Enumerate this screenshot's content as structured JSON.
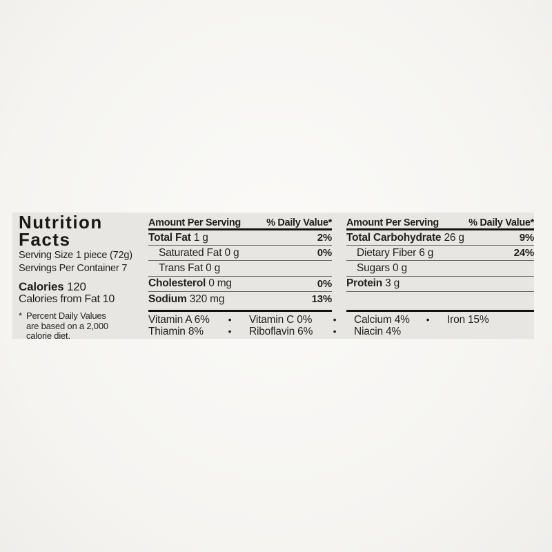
{
  "colors": {
    "photo_background": "#f7f6f3",
    "label_background": "#e8e6e2",
    "text": "#211f1c",
    "thin_rule": "#6e6b64",
    "thick_rule": "#14120f"
  },
  "title": {
    "line1": "Nutrition",
    "line2": "Facts"
  },
  "serving": {
    "size": "Serving Size 1 piece (72g)",
    "per_container": "Servings Per Container 7"
  },
  "calories": {
    "label": "Calories",
    "value": "120",
    "from_fat": "Calories from Fat 10"
  },
  "footnote": {
    "marker": "*",
    "line1": "Percent Daily Values",
    "line2": "are based on a 2,000",
    "line3": "calorie diet."
  },
  "columns": [
    {
      "header": {
        "amount": "Amount Per Serving",
        "daily": "% Daily Value*"
      },
      "rows": [
        {
          "name": "Total Fat",
          "value": "1 g",
          "dv": "2%"
        },
        {
          "name": "Saturated Fat",
          "value": "0 g",
          "dv": "0%"
        },
        {
          "name": "Trans Fat",
          "value": "0 g",
          "dv": ""
        },
        {
          "name": "Cholesterol",
          "value": "0 mg",
          "dv": "0%"
        },
        {
          "name": "Sodium",
          "value": "320 mg",
          "dv": "13%"
        }
      ]
    },
    {
      "header": {
        "amount": "Amount Per Serving",
        "daily": "% Daily Value*"
      },
      "rows": [
        {
          "name": "Total Carbohydrate",
          "value": "26 g",
          "dv": "9%"
        },
        {
          "name": "Dietary Fiber",
          "value": "6 g",
          "dv": "24%"
        },
        {
          "name": "Sugars",
          "value": "0 g",
          "dv": ""
        },
        {
          "name": "Protein",
          "value": "3 g",
          "dv": ""
        }
      ]
    }
  ],
  "micronutrients": {
    "bullet": "•",
    "row1": [
      "Vitamin A 6%",
      "Vitamin C 0%",
      "Calcium 4%",
      "Iron 15%"
    ],
    "row2": [
      "Thiamin 8%",
      "Riboflavin 6%",
      "Niacin 4%"
    ]
  }
}
